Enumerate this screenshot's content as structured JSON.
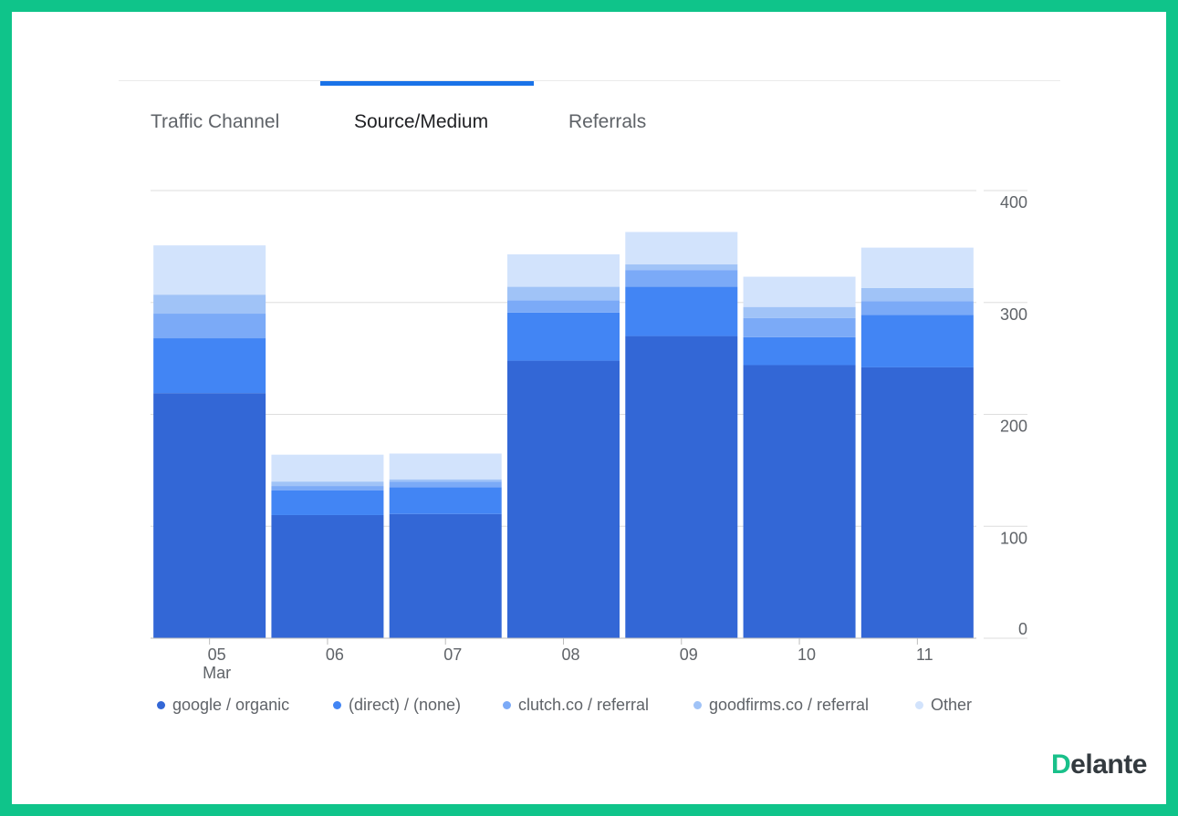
{
  "tabs": [
    {
      "label": "Traffic Channel",
      "active": false
    },
    {
      "label": "Source/Medium",
      "active": true
    },
    {
      "label": "Referrals",
      "active": false
    }
  ],
  "brand": {
    "first_letter": "D",
    "rest": "elante"
  },
  "colors": {
    "frame": "#0fc48a",
    "tab_indicator": "#1a73e8",
    "series": [
      "#3367d6",
      "#4285f4",
      "#7baaf7",
      "#a0c3f7",
      "#d2e3fc"
    ]
  },
  "chart_data": {
    "type": "bar",
    "stacked": true,
    "categories": [
      "05 Mar",
      "06",
      "07",
      "08",
      "09",
      "10",
      "11"
    ],
    "x_tick_labels": [
      [
        "05",
        "Mar"
      ],
      [
        "06"
      ],
      [
        "07"
      ],
      [
        "08"
      ],
      [
        "09"
      ],
      [
        "10"
      ],
      [
        "11"
      ]
    ],
    "y_ticks": [
      "0",
      "100",
      "200",
      "300",
      "400"
    ],
    "ylim": [
      0,
      400
    ],
    "y_axis_side": "right",
    "grid": true,
    "legend_position": "bottom",
    "series": [
      {
        "name": "google / organic",
        "values": [
          219,
          110,
          111,
          248,
          270,
          244,
          242
        ]
      },
      {
        "name": "(direct) / (none)",
        "values": [
          49,
          22,
          24,
          43,
          44,
          25,
          47
        ]
      },
      {
        "name": "clutch.co / referral",
        "values": [
          22,
          4,
          5,
          11,
          15,
          17,
          12
        ]
      },
      {
        "name": "goodfirms.co / referral",
        "values": [
          17,
          4,
          2,
          12,
          5,
          10,
          12
        ]
      },
      {
        "name": "Other",
        "values": [
          44,
          24,
          23,
          29,
          29,
          27,
          36
        ]
      }
    ]
  }
}
